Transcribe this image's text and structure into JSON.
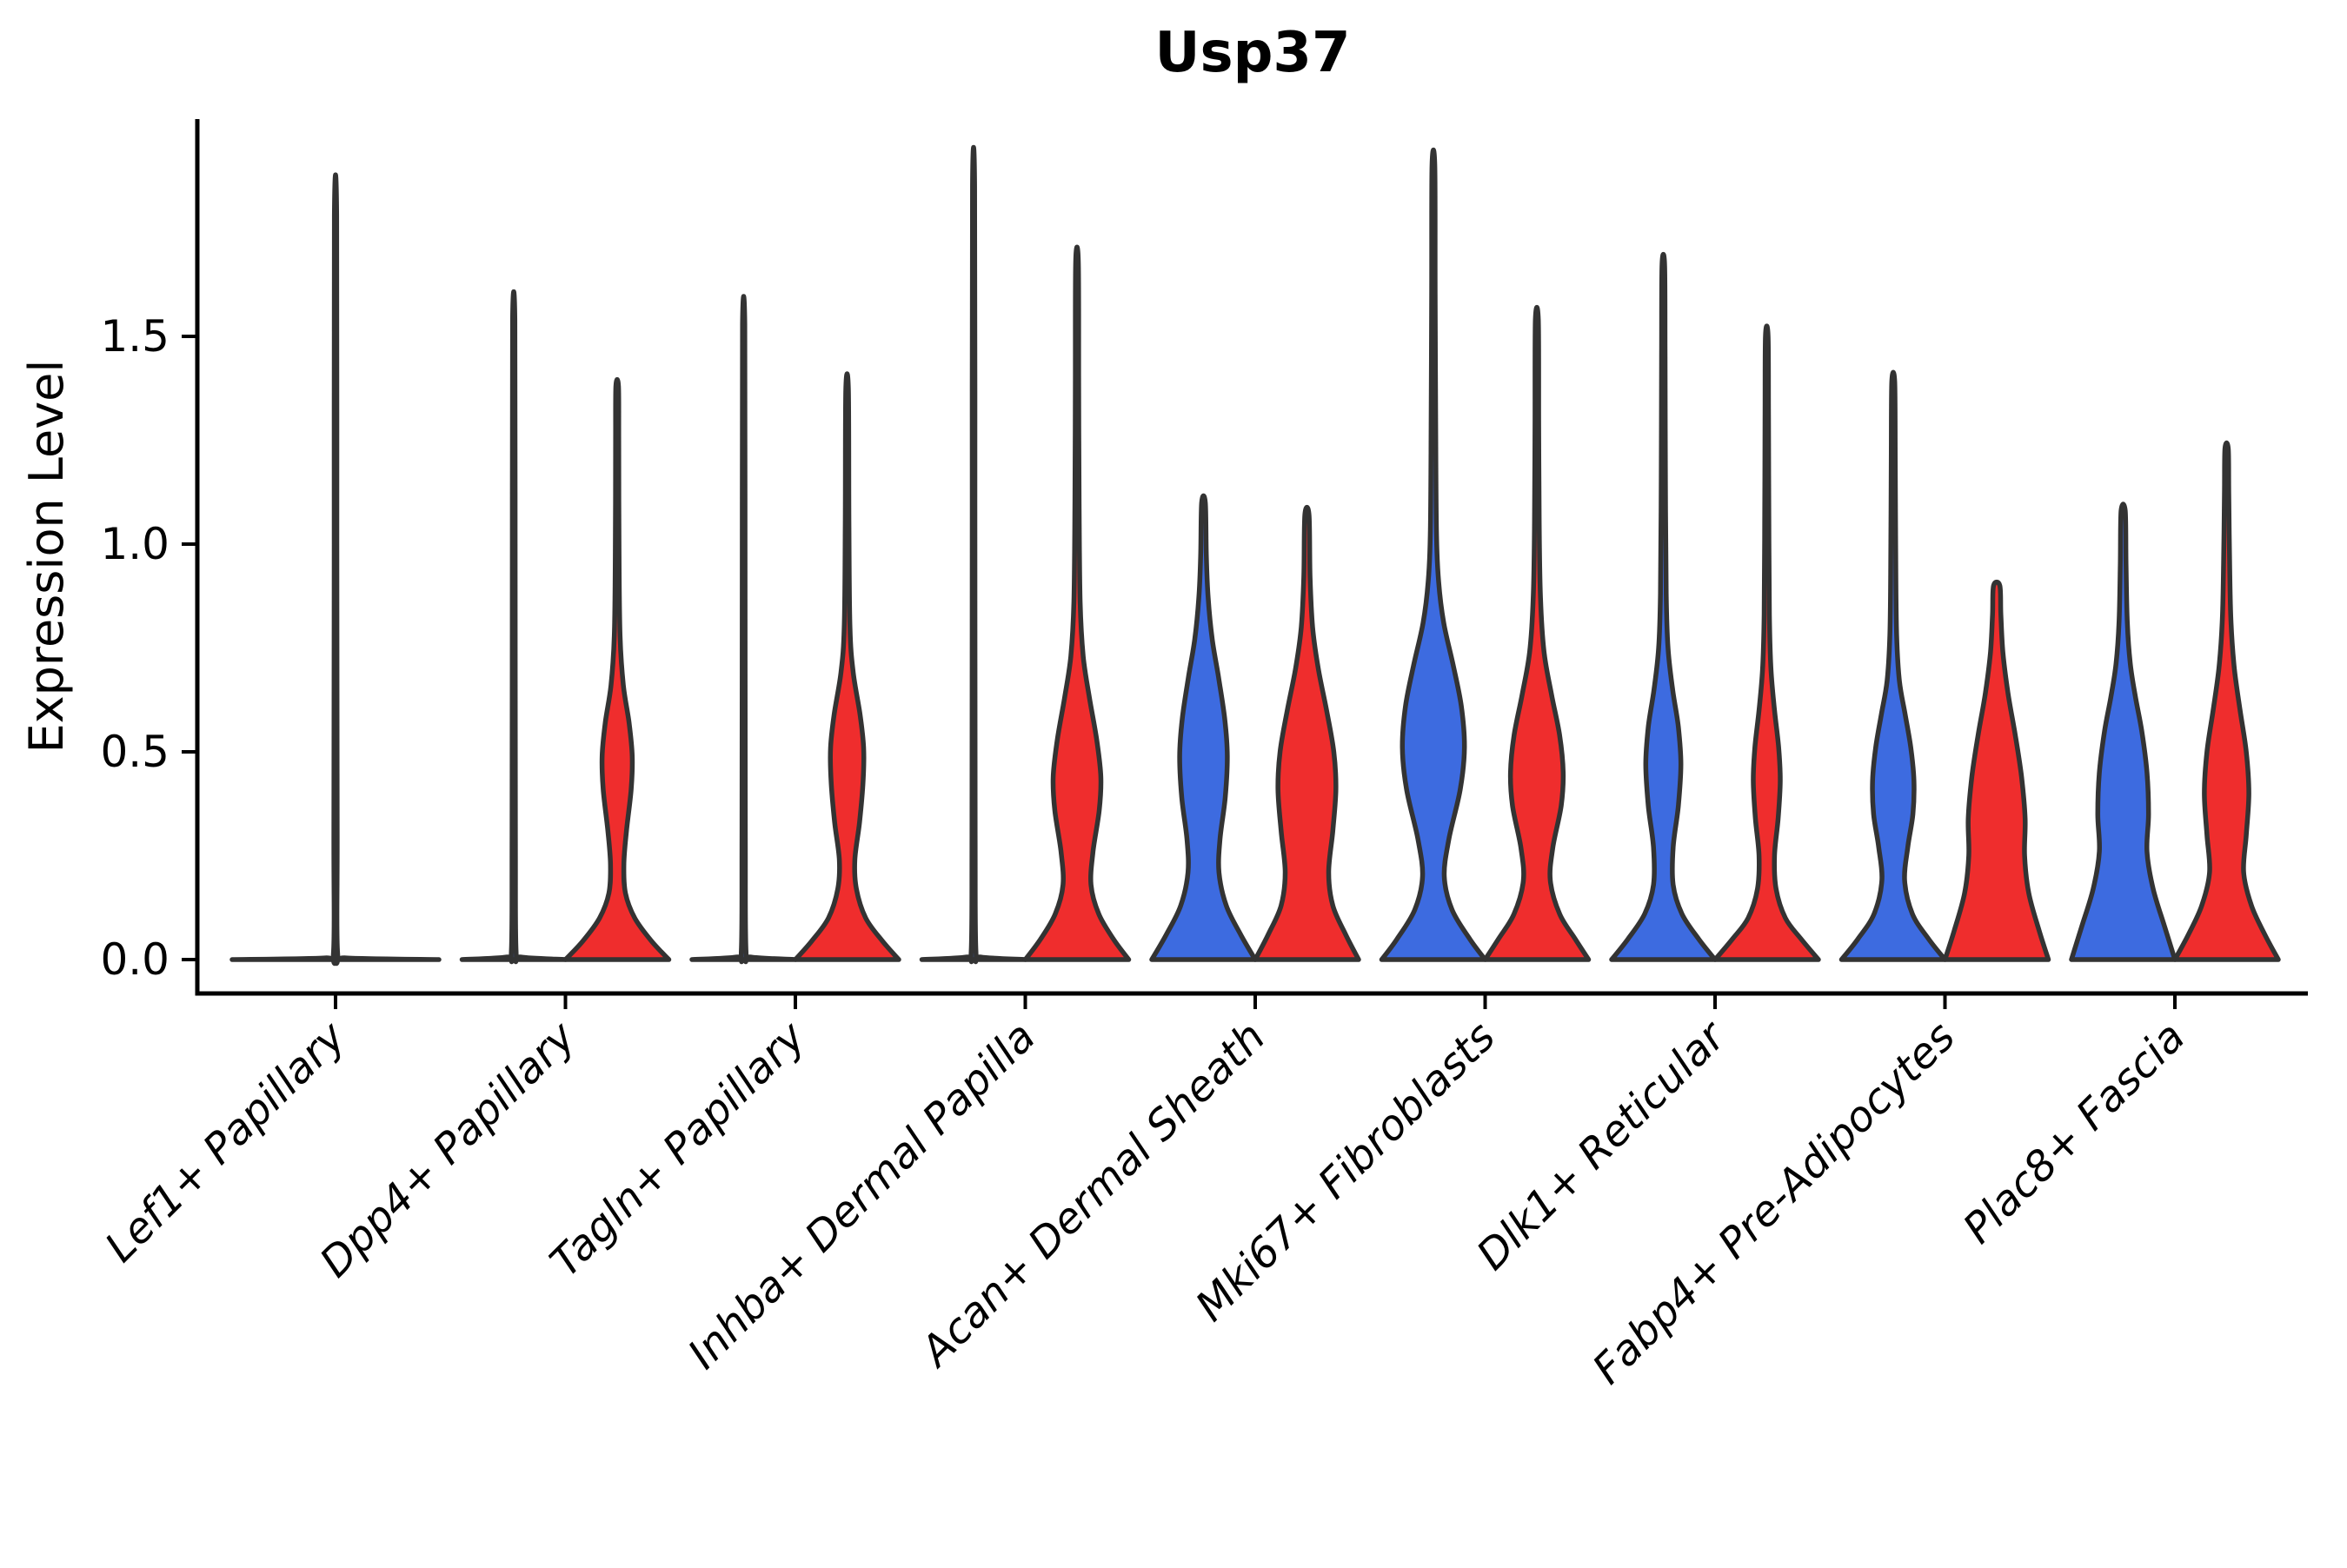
{
  "figure": {
    "title": "Usp37",
    "ylabel": "Expression Level"
  },
  "chart_data": {
    "type": "violin",
    "title": "Usp37",
    "xlabel": "",
    "ylabel": "Expression Level",
    "grid": false,
    "legend": "none",
    "ylim": [
      -0.08,
      2.02
    ],
    "ytick_labels": [
      "0.0",
      "0.5",
      "1.0",
      "1.5"
    ],
    "ytick_values": [
      0.0,
      0.5,
      1.0,
      1.5
    ],
    "categories": [
      "Lef1+ Papillary",
      "Dpp4+ Papillary",
      "Tagln+ Papillary",
      "Inhba+ Dermal Papilla",
      "Acan+ Dermal Sheath",
      "Mki67+ Fibroblasts",
      "Dlk1+ Reticular",
      "Fabp4+ Pre-Adipocytes",
      "Plac8+ Fascia"
    ],
    "colors": {
      "blue_fill": "#3D6BE0",
      "red_fill": "#EF2D2D",
      "violin_outline": "#333333",
      "axis": "#000000"
    },
    "note": "Split violin plot; widths are half-width fractions of violin max half-width; profile entries are [expression_value, halfwidth_fraction]. Flat violins collapse to a baseline with a thin density spike to the max value.",
    "series": [
      {
        "name": "blue",
        "color_key": "blue_fill",
        "violins": [
          {
            "cat": 0,
            "dx": 0,
            "w": 119,
            "top": 1.79,
            "shape": "flat-spike",
            "profile": [
              [
                0,
                1
              ],
              [
                0.004,
                0.1
              ],
              [
                0.015,
                0.02
              ],
              [
                0.3,
                0.016
              ],
              [
                1.0,
                0.013
              ],
              [
                1.79,
                0.011
              ]
            ]
          },
          {
            "cat": 1,
            "dx": -59.5,
            "w": 59.5,
            "top": 1.54,
            "shape": "flat-spike",
            "profile": [
              [
                0,
                1
              ],
              [
                0.006,
                0.14
              ],
              [
                0.02,
                0.045
              ],
              [
                0.3,
                0.032
              ],
              [
                1.0,
                0.027
              ],
              [
                1.54,
                0.022
              ]
            ]
          },
          {
            "cat": 2,
            "dx": -59.5,
            "w": 59.5,
            "top": 1.53,
            "shape": "flat-spike",
            "profile": [
              [
                0,
                1
              ],
              [
                0.006,
                0.14
              ],
              [
                0.02,
                0.045
              ],
              [
                0.3,
                0.032
              ],
              [
                1.0,
                0.027
              ],
              [
                1.53,
                0.022
              ]
            ]
          },
          {
            "cat": 3,
            "dx": -59.5,
            "w": 59.5,
            "top": 1.86,
            "shape": "flat-spike",
            "profile": [
              [
                0,
                1
              ],
              [
                0.006,
                0.14
              ],
              [
                0.02,
                0.045
              ],
              [
                0.3,
                0.03
              ],
              [
                1.1,
                0.026
              ],
              [
                1.86,
                0.021
              ]
            ]
          },
          {
            "cat": 4,
            "dx": -59.5,
            "w": 59.5,
            "top": 1.1,
            "shape": "violin",
            "profile": [
              [
                0,
                1
              ],
              [
                0.06,
                0.72
              ],
              [
                0.13,
                0.44
              ],
              [
                0.21,
                0.3
              ],
              [
                0.29,
                0.32
              ],
              [
                0.39,
                0.42
              ],
              [
                0.49,
                0.46
              ],
              [
                0.58,
                0.41
              ],
              [
                0.68,
                0.29
              ],
              [
                0.77,
                0.17
              ],
              [
                0.87,
                0.09
              ],
              [
                0.97,
                0.055
              ],
              [
                1.1,
                0.035
              ]
            ]
          },
          {
            "cat": 5,
            "dx": -59.5,
            "w": 59.5,
            "top": 1.91,
            "shape": "violin",
            "profile": [
              [
                0,
                1
              ],
              [
                0.05,
                0.7
              ],
              [
                0.12,
                0.36
              ],
              [
                0.2,
                0.21
              ],
              [
                0.29,
                0.3
              ],
              [
                0.41,
                0.52
              ],
              [
                0.51,
                0.6
              ],
              [
                0.61,
                0.54
              ],
              [
                0.71,
                0.38
              ],
              [
                0.81,
                0.2
              ],
              [
                0.91,
                0.1
              ],
              [
                1.02,
                0.06
              ],
              [
                1.25,
                0.045
              ],
              [
                1.6,
                0.034
              ],
              [
                1.91,
                0.027
              ]
            ]
          },
          {
            "cat": 6,
            "dx": -59.5,
            "w": 59.5,
            "top": 1.67,
            "shape": "violin",
            "profile": [
              [
                0,
                1
              ],
              [
                0.05,
                0.68
              ],
              [
                0.11,
                0.36
              ],
              [
                0.18,
                0.19
              ],
              [
                0.27,
                0.19
              ],
              [
                0.37,
                0.29
              ],
              [
                0.47,
                0.34
              ],
              [
                0.56,
                0.29
              ],
              [
                0.65,
                0.18
              ],
              [
                0.75,
                0.09
              ],
              [
                0.88,
                0.055
              ],
              [
                1.15,
                0.04
              ],
              [
                1.45,
                0.033
              ],
              [
                1.67,
                0.026
              ]
            ]
          },
          {
            "cat": 7,
            "dx": -59.5,
            "w": 59.5,
            "top": 1.39,
            "shape": "violin",
            "profile": [
              [
                0,
                1
              ],
              [
                0.05,
                0.68
              ],
              [
                0.11,
                0.37
              ],
              [
                0.19,
                0.22
              ],
              [
                0.27,
                0.28
              ],
              [
                0.35,
                0.38
              ],
              [
                0.43,
                0.4
              ],
              [
                0.51,
                0.34
              ],
              [
                0.59,
                0.23
              ],
              [
                0.67,
                0.12
              ],
              [
                0.78,
                0.065
              ],
              [
                0.95,
                0.048
              ],
              [
                1.2,
                0.038
              ],
              [
                1.39,
                0.028
              ]
            ]
          },
          {
            "cat": 8,
            "dx": -59.5,
            "w": 59.5,
            "top": 1.08,
            "shape": "violin",
            "profile": [
              [
                0,
                1
              ],
              [
                0.08,
                0.8
              ],
              [
                0.17,
                0.58
              ],
              [
                0.26,
                0.46
              ],
              [
                0.35,
                0.49
              ],
              [
                0.45,
                0.46
              ],
              [
                0.55,
                0.36
              ],
              [
                0.63,
                0.24
              ],
              [
                0.71,
                0.14
              ],
              [
                0.81,
                0.08
              ],
              [
                0.95,
                0.055
              ],
              [
                1.08,
                0.04
              ]
            ]
          }
        ]
      },
      {
        "name": "red",
        "color_key": "red_fill",
        "violins": [
          {
            "cat": 1,
            "dx": 59.5,
            "w": 59.5,
            "top": 1.38,
            "shape": "violin",
            "profile": [
              [
                0,
                1
              ],
              [
                0.045,
                0.66
              ],
              [
                0.1,
                0.34
              ],
              [
                0.16,
                0.16
              ],
              [
                0.23,
                0.13
              ],
              [
                0.31,
                0.18
              ],
              [
                0.41,
                0.27
              ],
              [
                0.49,
                0.29
              ],
              [
                0.57,
                0.23
              ],
              [
                0.66,
                0.12
              ],
              [
                0.78,
                0.055
              ],
              [
                1.0,
                0.035
              ],
              [
                1.25,
                0.03
              ],
              [
                1.38,
                0.025
              ]
            ]
          },
          {
            "cat": 2,
            "dx": 59.5,
            "w": 59.5,
            "top": 1.37,
            "shape": "violin",
            "profile": [
              [
                0,
                1
              ],
              [
                0.045,
                0.68
              ],
              [
                0.1,
                0.36
              ],
              [
                0.17,
                0.18
              ],
              [
                0.24,
                0.15
              ],
              [
                0.33,
                0.24
              ],
              [
                0.43,
                0.31
              ],
              [
                0.51,
                0.32
              ],
              [
                0.59,
                0.25
              ],
              [
                0.69,
                0.12
              ],
              [
                0.8,
                0.055
              ],
              [
                1.05,
                0.035
              ],
              [
                1.37,
                0.025
              ]
            ]
          },
          {
            "cat": 3,
            "dx": 59.5,
            "w": 59.5,
            "top": 1.68,
            "shape": "violin",
            "profile": [
              [
                0,
                1
              ],
              [
                0.05,
                0.7
              ],
              [
                0.11,
                0.42
              ],
              [
                0.18,
                0.27
              ],
              [
                0.26,
                0.31
              ],
              [
                0.36,
                0.43
              ],
              [
                0.44,
                0.46
              ],
              [
                0.53,
                0.38
              ],
              [
                0.63,
                0.24
              ],
              [
                0.73,
                0.12
              ],
              [
                0.86,
                0.06
              ],
              [
                1.1,
                0.04
              ],
              [
                1.4,
                0.032
              ],
              [
                1.68,
                0.026
              ]
            ]
          },
          {
            "cat": 4,
            "dx": 59.5,
            "w": 59.5,
            "top": 1.07,
            "shape": "violin",
            "profile": [
              [
                0,
                1
              ],
              [
                0.06,
                0.75
              ],
              [
                0.13,
                0.5
              ],
              [
                0.21,
                0.42
              ],
              [
                0.31,
                0.5
              ],
              [
                0.41,
                0.56
              ],
              [
                0.5,
                0.52
              ],
              [
                0.6,
                0.38
              ],
              [
                0.7,
                0.22
              ],
              [
                0.8,
                0.11
              ],
              [
                0.92,
                0.06
              ],
              [
                1.07,
                0.04
              ]
            ]
          },
          {
            "cat": 5,
            "dx": 59.5,
            "w": 59.5,
            "top": 1.54,
            "shape": "violin",
            "profile": [
              [
                0,
                1
              ],
              [
                0.05,
                0.74
              ],
              [
                0.11,
                0.44
              ],
              [
                0.19,
                0.26
              ],
              [
                0.27,
                0.31
              ],
              [
                0.37,
                0.47
              ],
              [
                0.45,
                0.51
              ],
              [
                0.54,
                0.44
              ],
              [
                0.64,
                0.28
              ],
              [
                0.74,
                0.14
              ],
              [
                0.87,
                0.07
              ],
              [
                1.05,
                0.045
              ],
              [
                1.3,
                0.036
              ],
              [
                1.54,
                0.028
              ]
            ]
          },
          {
            "cat": 6,
            "dx": 59.5,
            "w": 59.5,
            "top": 1.5,
            "shape": "violin",
            "profile": [
              [
                0,
                1
              ],
              [
                0.05,
                0.66
              ],
              [
                0.1,
                0.36
              ],
              [
                0.17,
                0.18
              ],
              [
                0.25,
                0.15
              ],
              [
                0.34,
                0.22
              ],
              [
                0.43,
                0.26
              ],
              [
                0.51,
                0.23
              ],
              [
                0.6,
                0.15
              ],
              [
                0.7,
                0.08
              ],
              [
                0.83,
                0.05
              ],
              [
                1.05,
                0.04
              ],
              [
                1.3,
                0.033
              ],
              [
                1.5,
                0.026
              ]
            ]
          },
          {
            "cat": 7,
            "dx": 59.5,
            "w": 59.5,
            "top": 0.9,
            "shape": "violin",
            "profile": [
              [
                0,
                1
              ],
              [
                0.07,
                0.82
              ],
              [
                0.16,
                0.62
              ],
              [
                0.25,
                0.54
              ],
              [
                0.34,
                0.55
              ],
              [
                0.44,
                0.48
              ],
              [
                0.54,
                0.36
              ],
              [
                0.64,
                0.22
              ],
              [
                0.74,
                0.12
              ],
              [
                0.83,
                0.08
              ],
              [
                0.9,
                0.06
              ]
            ]
          },
          {
            "cat": 8,
            "dx": 59.5,
            "w": 59.5,
            "top": 1.23,
            "shape": "violin",
            "profile": [
              [
                0,
                1
              ],
              [
                0.06,
                0.74
              ],
              [
                0.13,
                0.48
              ],
              [
                0.21,
                0.33
              ],
              [
                0.3,
                0.38
              ],
              [
                0.4,
                0.43
              ],
              [
                0.5,
                0.38
              ],
              [
                0.6,
                0.26
              ],
              [
                0.7,
                0.15
              ],
              [
                0.81,
                0.085
              ],
              [
                0.95,
                0.058
              ],
              [
                1.12,
                0.042
              ],
              [
                1.23,
                0.032
              ]
            ]
          }
        ]
      }
    ]
  }
}
